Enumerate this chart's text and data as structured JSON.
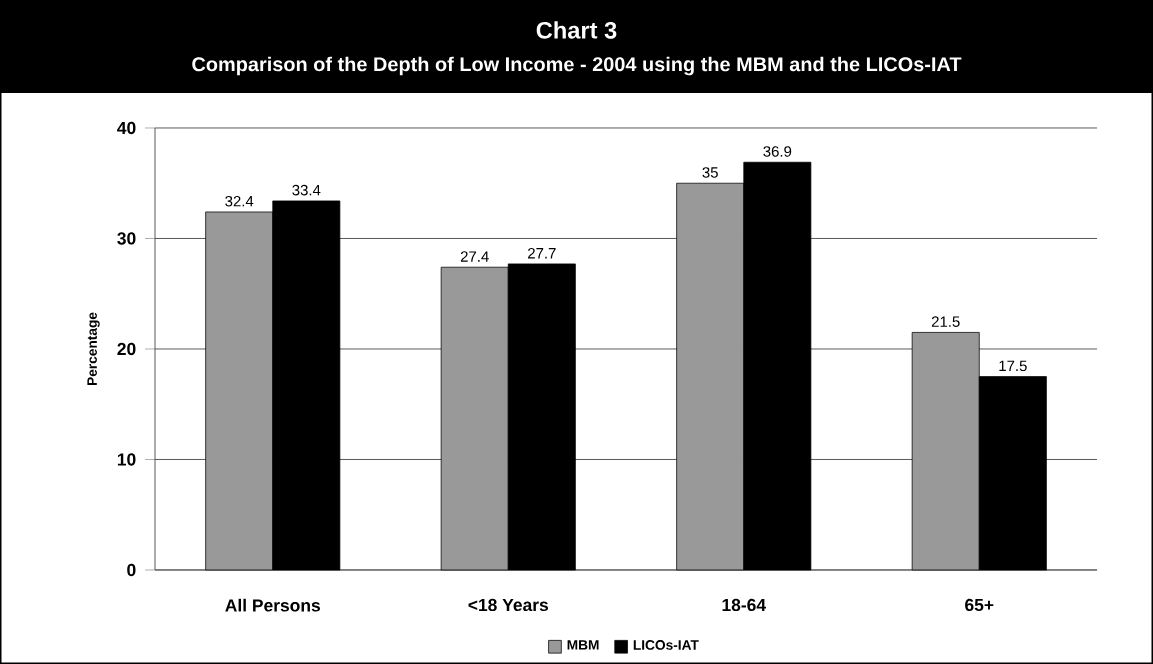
{
  "chart_data": {
    "type": "bar",
    "title": "Chart 3",
    "subtitle": "Comparison of the Depth of Low Income - 2004 using the MBM and the LICOs-IAT",
    "ylabel": "Percentage",
    "categories": [
      "All Persons",
      "<18 Years",
      "18-64",
      "65+"
    ],
    "series": [
      {
        "name": "MBM",
        "color": "#999999",
        "values": [
          32.4,
          27.4,
          35,
          21.5
        ]
      },
      {
        "name": "LICOs-IAT",
        "color": "#000000",
        "values": [
          33.4,
          27.7,
          36.9,
          17.5
        ]
      }
    ],
    "ylim": [
      0,
      40
    ],
    "yticks": [
      0,
      10,
      20,
      30,
      40
    ],
    "grid": "y",
    "legend": "bottom",
    "data_labels": true
  }
}
